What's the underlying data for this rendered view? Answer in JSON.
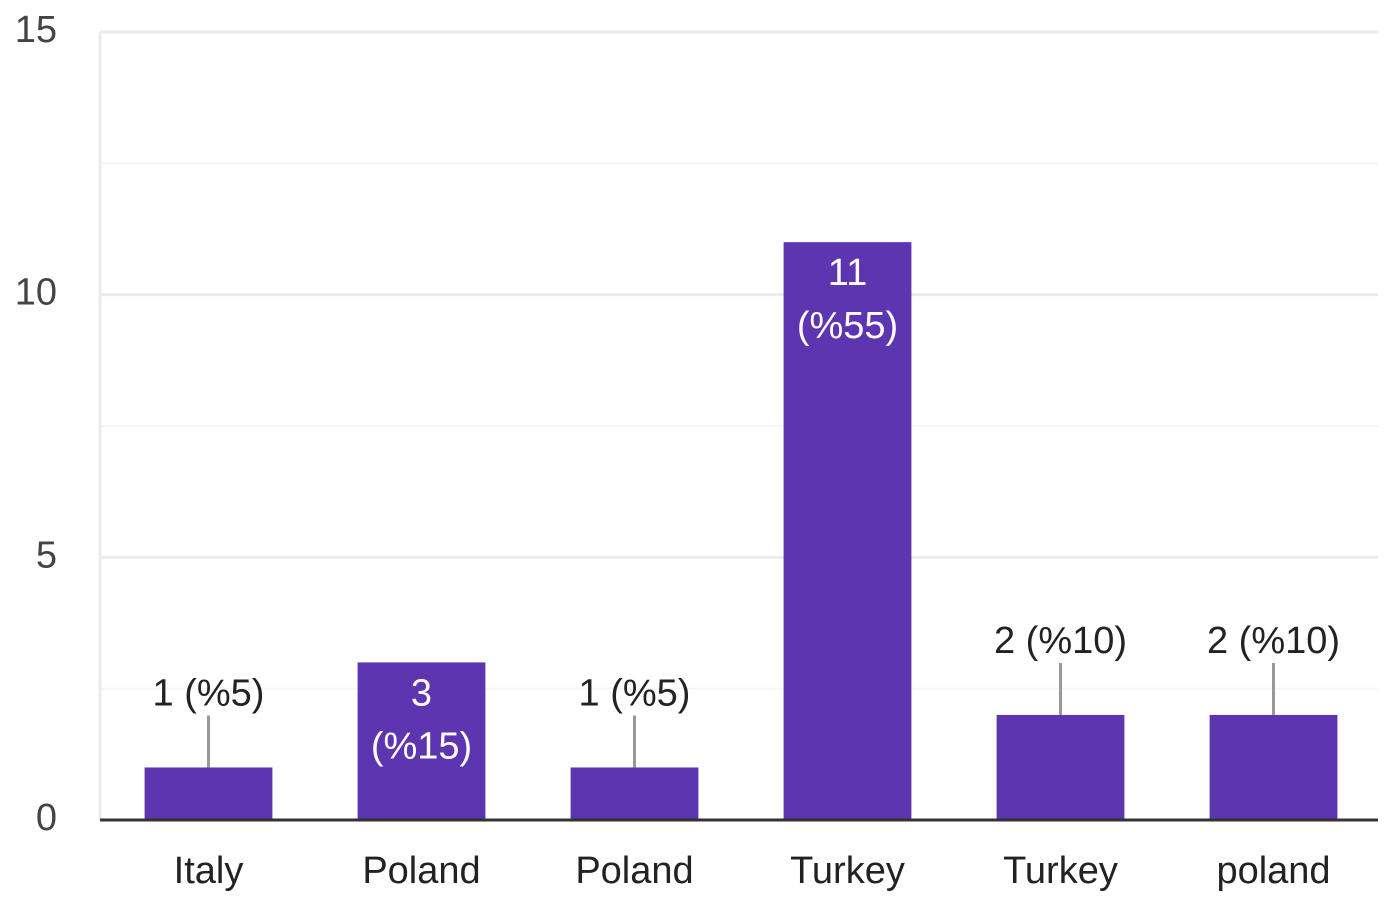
{
  "chart_data": {
    "type": "bar",
    "categories": [
      "Italy",
      "Poland",
      "Poland",
      "Turkey",
      "Turkey",
      "poland"
    ],
    "values": [
      1,
      3,
      1,
      11,
      2,
      2
    ],
    "value_labels": [
      "1 (%5)",
      "3 (%15)",
      "1 (%5)",
      "11 (%55)",
      "2 (%10)",
      "2 (%10)"
    ],
    "color": "#5e35b1",
    "ylim": [
      0,
      15
    ],
    "yticks": [
      0,
      5,
      10,
      15
    ],
    "yminor": [
      2.5,
      7.5,
      12.5
    ],
    "grid": true
  }
}
